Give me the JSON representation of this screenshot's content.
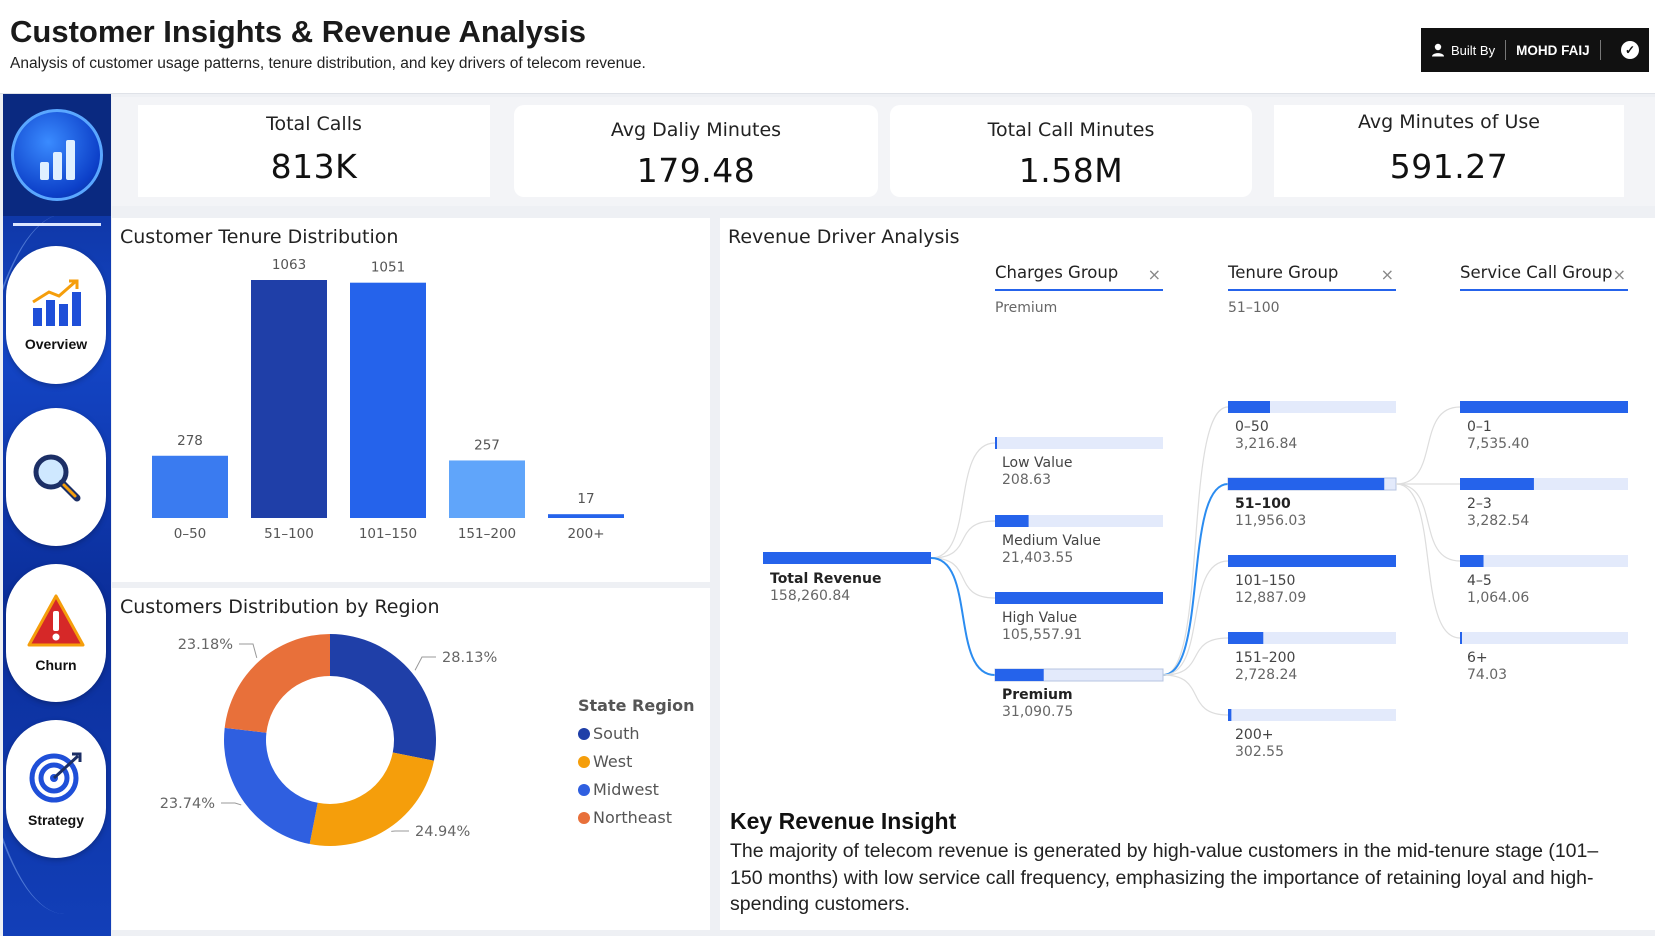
{
  "header": {
    "title": "Customer Insights & Revenue Analysis",
    "subtitle": "Analysis of customer usage patterns, tenure distribution, and key drivers of telecom revenue.",
    "built_by_label": "Built By",
    "built_by_name": "MOHD FAIJ"
  },
  "sidebar": {
    "items": [
      {
        "label": "Overview",
        "icon": "bar-chart-icon"
      },
      {
        "label": "",
        "icon": "magnifier-icon"
      },
      {
        "label": "Churn",
        "icon": "warning-icon"
      },
      {
        "label": "Strategy",
        "icon": "target-icon"
      }
    ]
  },
  "kpis": [
    {
      "label": "Total Calls",
      "value": "813K"
    },
    {
      "label": "Avg Daliy Minutes",
      "value": "179.48"
    },
    {
      "label": "Total Call Minutes",
      "value": "1.58M"
    },
    {
      "label": "Avg Minutes of Use",
      "value": "591.27"
    }
  ],
  "tenure_panel": {
    "title": "Customer Tenure Distribution"
  },
  "region_panel": {
    "title": "Customers Distribution by Region",
    "legend_title": "State Region"
  },
  "revenue_panel": {
    "title": "Revenue Driver Analysis",
    "columns": [
      {
        "label": "Charges Group",
        "selected": "Premium"
      },
      {
        "label": "Tenure Group",
        "selected": "51–100"
      },
      {
        "label": "Service Call Group",
        "selected": ""
      }
    ],
    "root": {
      "label": "Total Revenue",
      "value": "158,260.84"
    },
    "charges": [
      {
        "label": "Low Value",
        "value": "208.63",
        "bold": false,
        "fill": 0.002
      },
      {
        "label": "Medium Value",
        "value": "21,403.55",
        "bold": false,
        "fill": 0.2
      },
      {
        "label": "High Value",
        "value": "105,557.91",
        "bold": false,
        "fill": 1.0
      },
      {
        "label": "Premium",
        "value": "31,090.75",
        "bold": true,
        "fill": 0.29
      }
    ],
    "tenure": [
      {
        "label": "0–50",
        "value": "3,216.84",
        "bold": false,
        "fill": 0.25
      },
      {
        "label": "51–100",
        "value": "11,956.03",
        "bold": true,
        "fill": 0.93
      },
      {
        "label": "101–150",
        "value": "12,887.09",
        "bold": false,
        "fill": 1.0
      },
      {
        "label": "151–200",
        "value": "2,728.24",
        "bold": false,
        "fill": 0.21
      },
      {
        "label": "200+",
        "value": "302.55",
        "bold": false,
        "fill": 0.02
      }
    ],
    "service": [
      {
        "label": "0–1",
        "value": "7,535.40",
        "bold": false,
        "fill": 1.0
      },
      {
        "label": "2–3",
        "value": "3,282.54",
        "bold": false,
        "fill": 0.44
      },
      {
        "label": "4–5",
        "value": "1,064.06",
        "bold": false,
        "fill": 0.14
      },
      {
        "label": "6+",
        "value": "74.03",
        "bold": false,
        "fill": 0.01
      }
    ],
    "insight_title": "Key Revenue Insight",
    "insight_text": "The majority of telecom revenue is generated by high-value customers in the mid-tenure stage (101–150 months) with low service call frequency, emphasizing the importance of retaining loyal and high-spending customers."
  },
  "colors": {
    "bar_light": "#3a7bf0",
    "bar_dark": "#1f3fa8",
    "bar_mid": "#2563eb",
    "bar_pale": "#60a5fa",
    "south": "#1f3fa8",
    "west": "#f59e0b",
    "midwest": "#2f5fe0",
    "northeast": "#e8703a",
    "decomp_bar": "#2563eb",
    "decomp_track": "#e3eafb"
  },
  "chart_data": [
    {
      "type": "bar",
      "title": "Customer Tenure Distribution",
      "categories": [
        "0–50",
        "51–100",
        "101–150",
        "151–200",
        "200+"
      ],
      "values": [
        278,
        1063,
        1051,
        257,
        17
      ],
      "ylim": [
        0,
        1063
      ]
    },
    {
      "type": "pie",
      "title": "Customers Distribution by Region",
      "legend_title": "State Region",
      "labels": [
        "South",
        "West",
        "Midwest",
        "Northeast"
      ],
      "values": [
        28.13,
        24.94,
        23.74,
        23.18
      ],
      "value_labels": [
        "28.13%",
        "24.94%",
        "23.74%",
        "23.18%"
      ],
      "legend": "right"
    }
  ]
}
